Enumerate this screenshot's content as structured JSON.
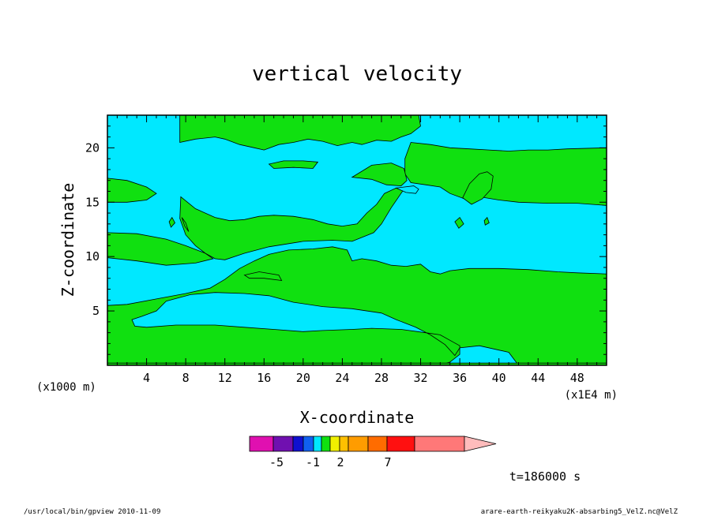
{
  "chart_data": {
    "type": "heatmap",
    "title": "vertical velocity",
    "xlabel": "X-coordinate",
    "ylabel": "Z-coordinate",
    "x_unit_left": "(x1000 m)",
    "x_unit_right": "(x1E4 m)",
    "xlim": [
      0,
      51
    ],
    "ylim": [
      0,
      23
    ],
    "x_ticks": [
      4,
      8,
      12,
      16,
      20,
      24,
      28,
      32,
      36,
      40,
      44,
      48
    ],
    "y_ticks": [
      5,
      10,
      15,
      20
    ],
    "time_label": "t=186000 s",
    "colorbar": {
      "colors": [
        "#e010b0",
        "#7010b0",
        "#1010d0",
        "#1060f0",
        "#00e8ff",
        "#10e010",
        "#f0f000",
        "#ffc000",
        "#ff9c00",
        "#ff6c00",
        "#ff1010",
        "#ff7878",
        "#ffbcbc"
      ],
      "tick_labels": [
        "-5",
        "-1",
        "2",
        "7"
      ]
    },
    "field_colors": {
      "cyan": "#00e8ff",
      "green": "#10e010"
    },
    "green_regions": [
      [
        [
          0,
          17.2
        ],
        [
          2,
          17
        ],
        [
          4,
          16.4
        ],
        [
          5,
          15.8
        ],
        [
          4,
          15.2
        ],
        [
          2,
          15
        ],
        [
          0,
          15
        ]
      ],
      [
        [
          0,
          12.2
        ],
        [
          3,
          12.1
        ],
        [
          6,
          11.6
        ],
        [
          8,
          11
        ],
        [
          10,
          10.3
        ],
        [
          10.8,
          9.8
        ],
        [
          9,
          9.4
        ],
        [
          6,
          9.2
        ],
        [
          3,
          9.6
        ],
        [
          0,
          9.9
        ]
      ],
      [
        [
          7.5,
          15.5
        ],
        [
          9,
          14.4
        ],
        [
          11,
          13.6
        ],
        [
          12.5,
          13.3
        ],
        [
          14,
          13.4
        ],
        [
          15.5,
          13.7
        ],
        [
          17,
          13.8
        ],
        [
          19,
          13.7
        ],
        [
          21,
          13.4
        ],
        [
          22.5,
          13
        ],
        [
          24,
          12.8
        ],
        [
          25.5,
          13
        ],
        [
          26.5,
          14
        ],
        [
          27.5,
          14.8
        ],
        [
          28.3,
          15.8
        ],
        [
          29.5,
          16.3
        ],
        [
          30.3,
          16.2
        ],
        [
          29,
          14.5
        ],
        [
          28,
          13
        ],
        [
          27.2,
          12.2
        ],
        [
          25,
          11.4
        ],
        [
          23,
          11.5
        ],
        [
          20,
          11.4
        ],
        [
          16.5,
          10.9
        ],
        [
          14,
          10.3
        ],
        [
          12,
          9.7
        ],
        [
          11,
          9.8
        ],
        [
          10,
          10.3
        ],
        [
          9,
          11
        ],
        [
          8,
          12
        ],
        [
          7.4,
          13.5
        ]
      ],
      [
        [
          0,
          5.5
        ],
        [
          2,
          5.6
        ],
        [
          5,
          6.1
        ],
        [
          8,
          6.6
        ],
        [
          10.5,
          7.1
        ],
        [
          12,
          7.9
        ],
        [
          13.5,
          8.9
        ],
        [
          15,
          9.6
        ],
        [
          16.5,
          10.2
        ],
        [
          18.5,
          10.6
        ],
        [
          21,
          10.7
        ],
        [
          23,
          10.9
        ],
        [
          24.5,
          10.6
        ],
        [
          25,
          9.6
        ],
        [
          26,
          9.8
        ],
        [
          27.5,
          9.6
        ],
        [
          29,
          9.2
        ],
        [
          30.5,
          9.1
        ],
        [
          32,
          9.3
        ],
        [
          33,
          8.6
        ],
        [
          34,
          8.4
        ],
        [
          35,
          8.7
        ],
        [
          37,
          8.9
        ],
        [
          40,
          8.9
        ],
        [
          43,
          8.8
        ],
        [
          46,
          8.6
        ],
        [
          48,
          8.5
        ],
        [
          51,
          8.4
        ],
        [
          51,
          0
        ],
        [
          42,
          0
        ],
        [
          41,
          1.2
        ],
        [
          38,
          1.8
        ],
        [
          36,
          1.6
        ],
        [
          35.5,
          0.9
        ],
        [
          34.5,
          1.9
        ],
        [
          33,
          2.8
        ],
        [
          31.5,
          3.5
        ],
        [
          29.5,
          4.2
        ],
        [
          28,
          4.8
        ],
        [
          25,
          5.2
        ],
        [
          22,
          5.4
        ],
        [
          19,
          5.8
        ],
        [
          16.5,
          6.4
        ],
        [
          14,
          6.6
        ],
        [
          11,
          6.7
        ],
        [
          8.5,
          6.5
        ],
        [
          6,
          5.9
        ],
        [
          5,
          5
        ],
        [
          3.5,
          4.5
        ],
        [
          2.5,
          4.2
        ],
        [
          2.8,
          3.6
        ],
        [
          4,
          3.5
        ],
        [
          7,
          3.7
        ],
        [
          11,
          3.7
        ],
        [
          14,
          3.5
        ],
        [
          17,
          3.3
        ],
        [
          20,
          3.1
        ],
        [
          22,
          3.2
        ],
        [
          25,
          3.3
        ],
        [
          27,
          3.4
        ],
        [
          30,
          3.3
        ],
        [
          32.5,
          3
        ],
        [
          34,
          2.8
        ],
        [
          35,
          2.3
        ],
        [
          36,
          1.8
        ],
        [
          36,
          1
        ],
        [
          35,
          0.3
        ],
        [
          34,
          0
        ],
        [
          0,
          0
        ]
      ],
      [
        [
          7.4,
          23
        ],
        [
          7.4,
          20.5
        ],
        [
          9,
          20.8
        ],
        [
          11,
          21
        ],
        [
          12,
          20.8
        ],
        [
          13.5,
          20.3
        ],
        [
          15,
          20
        ],
        [
          16,
          19.8
        ],
        [
          17.5,
          20.3
        ],
        [
          19,
          20.5
        ],
        [
          20.5,
          20.8
        ],
        [
          22,
          20.6
        ],
        [
          23.5,
          20.2
        ],
        [
          25,
          20.5
        ],
        [
          26,
          20.3
        ],
        [
          27.5,
          20.7
        ],
        [
          29,
          20.6
        ],
        [
          30,
          21
        ],
        [
          31,
          21.3
        ],
        [
          32,
          22
        ],
        [
          31.8,
          23
        ]
      ],
      [
        [
          31,
          20.5
        ],
        [
          33,
          20.3
        ],
        [
          35,
          20
        ],
        [
          37,
          19.9
        ],
        [
          39,
          19.8
        ],
        [
          41,
          19.7
        ],
        [
          43,
          19.8
        ],
        [
          45,
          19.8
        ],
        [
          47,
          19.9
        ],
        [
          51,
          20
        ],
        [
          51,
          14.7
        ],
        [
          48,
          14.9
        ],
        [
          45,
          14.9
        ],
        [
          42,
          15
        ],
        [
          40,
          15.2
        ],
        [
          38,
          15.5
        ],
        [
          36.5,
          15.3
        ],
        [
          35,
          15.8
        ],
        [
          34,
          16.4
        ],
        [
          32.5,
          16.6
        ],
        [
          31,
          16.8
        ],
        [
          30.4,
          17.6
        ],
        [
          30.4,
          19
        ]
      ],
      [
        [
          0,
          0
        ],
        [
          51,
          0
        ],
        [
          51,
          0.2
        ],
        [
          0,
          0.2
        ]
      ],
      [
        [
          25,
          17.3
        ],
        [
          27,
          18.4
        ],
        [
          29,
          18.6
        ],
        [
          30.3,
          18.1
        ],
        [
          30.6,
          17
        ],
        [
          30,
          16.5
        ],
        [
          28.5,
          16.6
        ],
        [
          27,
          17.1
        ]
      ],
      [
        [
          16.5,
          18.5
        ],
        [
          18,
          18.8
        ],
        [
          20,
          18.8
        ],
        [
          21.5,
          18.7
        ],
        [
          21,
          18.1
        ],
        [
          19,
          18.2
        ],
        [
          17,
          18.1
        ]
      ],
      [
        [
          36.3,
          15.4
        ],
        [
          37,
          16.7
        ],
        [
          38,
          17.6
        ],
        [
          38.8,
          17.8
        ],
        [
          39.4,
          17.4
        ],
        [
          39.2,
          16.2
        ],
        [
          38.3,
          15.3
        ],
        [
          37.2,
          14.8
        ]
      ],
      [
        [
          14,
          8.3
        ],
        [
          15.5,
          8.6
        ],
        [
          17.5,
          8.3
        ],
        [
          17.8,
          7.8
        ],
        [
          16,
          8
        ],
        [
          14.5,
          8
        ]
      ],
      [
        [
          6.3,
          13.2
        ],
        [
          6.6,
          13.6
        ],
        [
          6.9,
          13.1
        ],
        [
          6.5,
          12.7
        ]
      ],
      [
        [
          7.6,
          13.6
        ],
        [
          8,
          13.1
        ],
        [
          8.3,
          12.3
        ],
        [
          7.9,
          12.8
        ]
      ],
      [
        [
          35.5,
          13.2
        ],
        [
          36,
          13.6
        ],
        [
          36.4,
          13
        ],
        [
          35.9,
          12.6
        ]
      ],
      [
        [
          38.5,
          13.3
        ],
        [
          38.8,
          13.6
        ],
        [
          39,
          13.1
        ],
        [
          38.6,
          12.9
        ]
      ]
    ],
    "cyan_regions": [
      [
        [
          29.5,
          16.3
        ],
        [
          31.3,
          16.5
        ],
        [
          31.8,
          16.2
        ],
        [
          31.5,
          15.8
        ],
        [
          30.5,
          15.9
        ]
      ]
    ],
    "footer_left": "/usr/local/bin/gpview  2010-11-09",
    "footer_right": "arare-earth-reikyaku2K-absarbing5_VelZ.nc@VelZ"
  }
}
